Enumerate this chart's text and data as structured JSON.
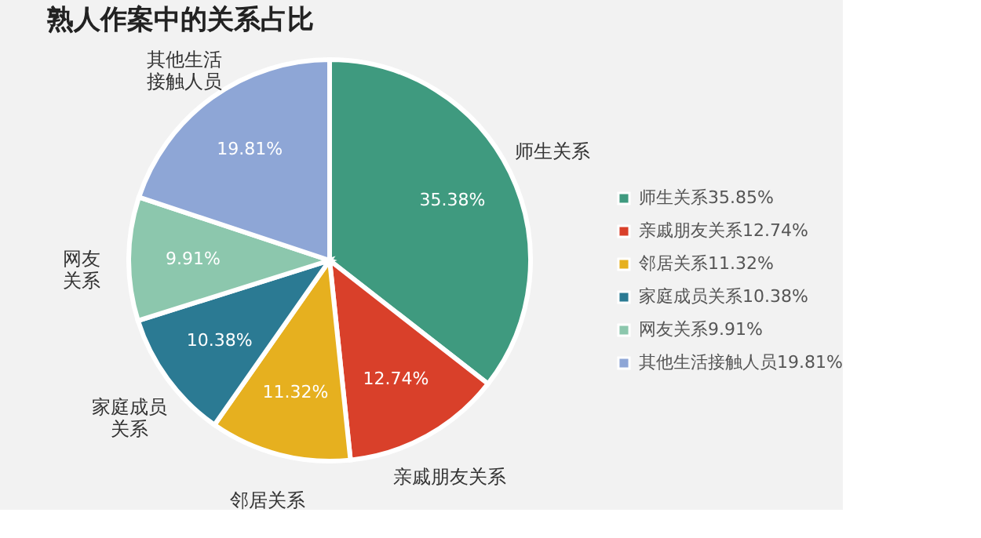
{
  "chart_data": {
    "type": "pie",
    "title": "熟人作案中的关系占比",
    "categories": [
      "师生关系35.85%",
      "亲戚朋友关系12.74%",
      "邻居关系11.32%",
      "家庭成员关系10.38%",
      "网友关系9.91%",
      "其他生活接触人员19.81%"
    ],
    "values": [
      35.38,
      12.74,
      11.32,
      10.38,
      9.91,
      19.81
    ],
    "value_labels": [
      "35.38%",
      "12.74%",
      "11.32%",
      "10.38%",
      "9.91%",
      "19.81%"
    ],
    "annotations": [
      {
        "text": "师生关系",
        "x": "师生关系35.85%"
      },
      {
        "text": "亲戚朋友关系",
        "x": "亲戚朋友关系12.74%"
      },
      {
        "text": "邻居关系",
        "x": "邻居关系11.32%"
      },
      {
        "text": "家庭成员",
        "x": "家庭成员关系10.38%"
      },
      {
        "text": "关系",
        "x": "家庭成员关系10.38%"
      },
      {
        "text": "网友",
        "x": "网友关系9.91%"
      },
      {
        "text": "关系",
        "x": "网友关系9.91%"
      },
      {
        "text": "其他生活",
        "x": "其他生活接触人员19.81%"
      },
      {
        "text": "接触人员",
        "x": "其他生活接触人员19.81%"
      }
    ],
    "colors": [
      "#3f9a7f",
      "#d9402a",
      "#e6b01f",
      "#2b7a93",
      "#8cc7ad",
      "#8ea6d6"
    ],
    "legend": "right"
  }
}
